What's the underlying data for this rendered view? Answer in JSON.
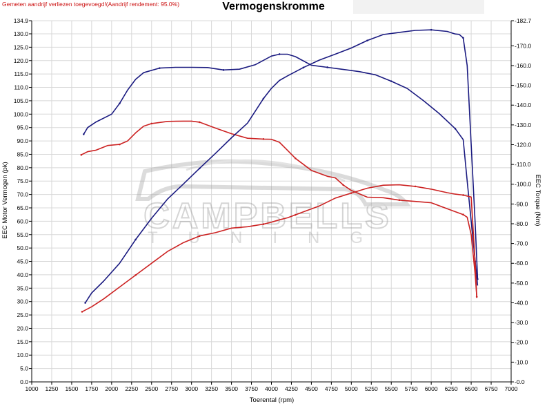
{
  "header": {
    "note": "Gemeten aandrijf verliezen toegevoegd!(Aandrijf rendement: 95.0%)",
    "title": "Vermogenskromme"
  },
  "watermark": {
    "text_line1": "CAMPBELLS",
    "text_line2": "TUNING"
  },
  "colors": {
    "blue": "#1a1a80",
    "red": "#cc2222",
    "grid": "#d8d8d8",
    "axis": "#000000"
  },
  "chart_data": {
    "type": "line",
    "title": "Vermogenskromme",
    "xlabel": "Toerental (rpm)",
    "ylabel_left": "EEC Motor Vermogen (pk)",
    "ylabel_right": "EEC Torque (Nm)",
    "xlim": [
      1000,
      7000
    ],
    "ylim_left": [
      0,
      134.9
    ],
    "ylim_right": [
      0,
      182.7
    ],
    "x_ticks": [
      1000,
      1250,
      1500,
      1750,
      2000,
      2250,
      2500,
      2750,
      3000,
      3250,
      3500,
      3750,
      4000,
      4250,
      4500,
      4750,
      5000,
      5250,
      5500,
      5750,
      6000,
      6250,
      6500,
      6750,
      7000
    ],
    "y_left_ticks": [
      "0.0",
      "5.0",
      "10.0",
      "15.0",
      "20.0",
      "25.0",
      "30.0",
      "35.0",
      "40.0",
      "45.0",
      "50.0",
      "55.0",
      "60.0",
      "65.0",
      "70.0",
      "75.0",
      "80.0",
      "85.0",
      "90.0",
      "95.0",
      "100.0",
      "105.0",
      "110.0",
      "115.0",
      "120.0",
      "125.0",
      "130.0",
      "134.9"
    ],
    "y_right_ticks": [
      "0.0",
      "10.0",
      "20.0",
      "30.0",
      "40.0",
      "50.0",
      "60.0",
      "70.0",
      "80.0",
      "90.0",
      "100.0",
      "110.0",
      "120.0",
      "130.0",
      "140.0",
      "150.0",
      "160.0",
      "170.0",
      "182.7"
    ],
    "grid": true,
    "series": [
      {
        "axis": "left",
        "color": "#1a1a80",
        "x": [
          1650,
          1700,
          1800,
          2000,
          2100,
          2200,
          2300,
          2400,
          2600,
          2800,
          3000,
          3200,
          3400,
          3600,
          3800,
          4000,
          4100,
          4200,
          4300,
          4500,
          4700,
          4900,
          5100,
          5300,
          5500,
          5700,
          5900,
          6100,
          6300,
          6400,
          6450,
          6500,
          6550,
          6580
        ],
        "y": [
          92.5,
          95,
          97,
          100,
          104,
          109,
          113,
          115.5,
          117.2,
          117.5,
          117.5,
          117.4,
          116.5,
          116.8,
          118.5,
          121.7,
          122.4,
          122.4,
          121.5,
          118.3,
          117.5,
          116.7,
          115.9,
          114.7,
          112.3,
          109.6,
          105.1,
          100.2,
          94.6,
          90.5,
          75,
          60,
          45,
          36
        ]
      },
      {
        "axis": "left",
        "color": "#cc2222",
        "x": [
          1620,
          1700,
          1800,
          1950,
          2100,
          2200,
          2300,
          2400,
          2500,
          2700,
          2900,
          3000,
          3100,
          3300,
          3500,
          3700,
          3900,
          4000,
          4100,
          4200,
          4300,
          4500,
          4700,
          4800,
          4900,
          5000,
          5200,
          5400,
          5600,
          5800,
          6000,
          6200,
          6400,
          6450,
          6500,
          6550,
          6570
        ],
        "y": [
          84.8,
          86,
          86.5,
          88.3,
          88.7,
          90,
          93,
          95.5,
          96.5,
          97.3,
          97.4,
          97.4,
          97,
          94.8,
          92.7,
          91,
          90.7,
          90.6,
          89.5,
          86.5,
          83.5,
          79,
          76.8,
          76.2,
          73.5,
          71.5,
          69,
          68.8,
          67.9,
          67.4,
          66.9,
          64.7,
          62.5,
          61.5,
          55,
          40,
          31.8
        ]
      },
      {
        "axis": "right",
        "color": "#1a1a80",
        "x": [
          1670,
          1750,
          1900,
          2100,
          2300,
          2500,
          2700,
          2900,
          3100,
          3300,
          3500,
          3700,
          3900,
          4000,
          4100,
          4200,
          4400,
          4600,
          4800,
          5000,
          5200,
          5400,
          5600,
          5800,
          6000,
          6200,
          6300,
          6350,
          6400,
          6450,
          6500,
          6550,
          6580
        ],
        "y": [
          40,
          45,
          51,
          60,
          72,
          82.8,
          92.5,
          100.2,
          108,
          115.6,
          123.5,
          130.9,
          143.3,
          148.5,
          152.5,
          154.8,
          159,
          162.8,
          165.8,
          168.9,
          172.7,
          175.7,
          176.8,
          177.8,
          178.1,
          177.3,
          176,
          175.8,
          174,
          160,
          120,
          80,
          52
        ]
      },
      {
        "axis": "right",
        "color": "#cc2222",
        "x": [
          1630,
          1750,
          1900,
          2100,
          2300,
          2500,
          2700,
          2900,
          3100,
          3300,
          3500,
          3700,
          3900,
          4000,
          4100,
          4200,
          4300,
          4400,
          4600,
          4800,
          5000,
          5200,
          5400,
          5600,
          5800,
          6000,
          6200,
          6300,
          6400,
          6500,
          6550,
          6570
        ],
        "y": [
          35.5,
          38,
          42,
          48,
          54,
          60,
          66,
          70.5,
          73.8,
          75.5,
          77.8,
          78.5,
          79.8,
          80.8,
          82,
          83,
          84.5,
          86,
          89,
          93,
          95.5,
          98,
          99.5,
          99.7,
          98.9,
          97.5,
          95.7,
          95,
          94.5,
          93.5,
          60,
          42.5
        ]
      }
    ]
  }
}
